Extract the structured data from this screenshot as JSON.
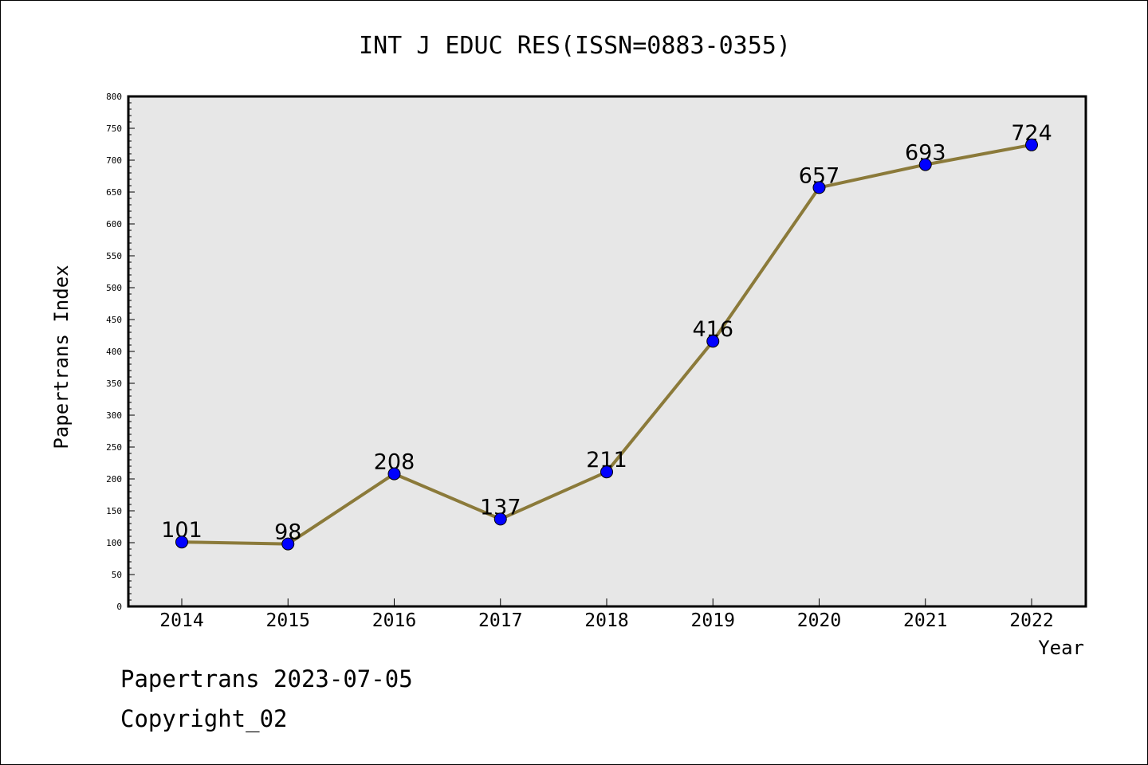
{
  "chart_data": {
    "type": "line",
    "title": "INT J EDUC RES(ISSN=0883-0355)",
    "xlabel": "Year",
    "ylabel": "Papertrans Index",
    "categories": [
      "2014",
      "2015",
      "2016",
      "2017",
      "2018",
      "2019",
      "2020",
      "2021",
      "2022"
    ],
    "series": [
      {
        "values": [
          101,
          98,
          208,
          137,
          211,
          416,
          657,
          693,
          724
        ]
      }
    ],
    "data_labels": [
      "101",
      "98",
      "208",
      "137",
      "211",
      "416",
      "657",
      "693",
      "724"
    ],
    "ylim": [
      0,
      800
    ],
    "yticks": [
      0,
      50,
      100,
      150,
      200,
      250,
      300,
      350,
      400,
      450,
      500,
      550,
      600,
      650,
      700,
      750,
      800
    ],
    "grid": false,
    "colors": {
      "line": "#8b7a3a",
      "marker": "#0000ff",
      "plot_background": "#e7e7e7"
    }
  },
  "footer": {
    "line1": "Papertrans 2023-07-05",
    "line2": "Copyright_02"
  }
}
